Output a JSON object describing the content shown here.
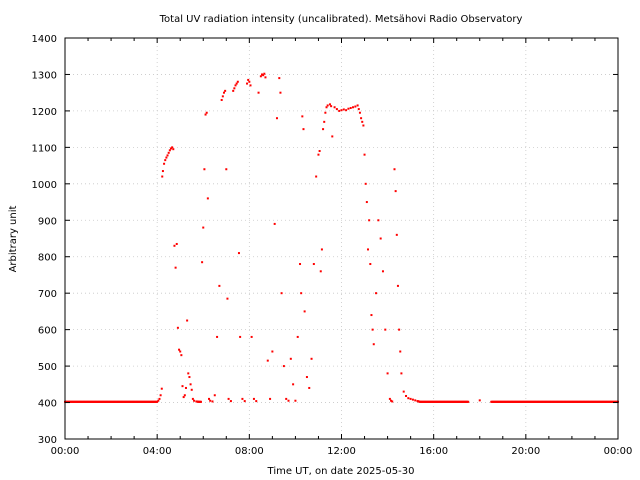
{
  "chart_data": {
    "type": "scatter",
    "title": "Total UV radiation intensity (uncalibrated). Metsähovi Radio Observatory",
    "xlabel": "Time UT, on date 2025-05-30",
    "ylabel": "Arbitrary unit",
    "xlim": [
      0,
      24
    ],
    "ylim": [
      300,
      1400
    ],
    "x_ticks": [
      0,
      4,
      8,
      12,
      16,
      20,
      24
    ],
    "x_tick_labels": [
      "00:00",
      "04:00",
      "08:00",
      "12:00",
      "16:00",
      "20:00",
      "00:00"
    ],
    "y_ticks": [
      300,
      400,
      500,
      600,
      700,
      800,
      900,
      1000,
      1100,
      1200,
      1300,
      1400
    ],
    "y_tick_labels": [
      "300",
      "400",
      "500",
      "600",
      "700",
      "800",
      "900",
      "1000",
      "1100",
      "1200",
      "1300",
      "1400"
    ],
    "grid": true,
    "marker_color": "#ff0000",
    "series": [
      {
        "points": [
          [
            0.0,
            402
          ],
          [
            0.5,
            402
          ],
          [
            1.0,
            402
          ],
          [
            1.5,
            402
          ],
          [
            2.0,
            402
          ],
          [
            2.5,
            402
          ],
          [
            3.0,
            402
          ],
          [
            3.5,
            402
          ],
          [
            4.0,
            402
          ],
          [
            4.05,
            405
          ],
          [
            4.1,
            410
          ],
          [
            4.15,
            420
          ],
          [
            4.2,
            438
          ],
          [
            4.22,
            1020
          ],
          [
            4.25,
            1035
          ],
          [
            4.3,
            1055
          ],
          [
            4.35,
            1065
          ],
          [
            4.4,
            1072
          ],
          [
            4.45,
            1078
          ],
          [
            4.5,
            1085
          ],
          [
            4.55,
            1092
          ],
          [
            4.6,
            1097
          ],
          [
            4.65,
            1100
          ],
          [
            4.7,
            1095
          ],
          [
            4.75,
            830
          ],
          [
            4.8,
            770
          ],
          [
            4.85,
            835
          ],
          [
            4.9,
            605
          ],
          [
            4.95,
            545
          ],
          [
            5.0,
            540
          ],
          [
            5.05,
            530
          ],
          [
            5.1,
            445
          ],
          [
            5.15,
            415
          ],
          [
            5.2,
            420
          ],
          [
            5.25,
            440
          ],
          [
            5.3,
            625
          ],
          [
            5.35,
            480
          ],
          [
            5.4,
            470
          ],
          [
            5.45,
            450
          ],
          [
            5.5,
            435
          ],
          [
            5.55,
            410
          ],
          [
            5.6,
            405
          ],
          [
            5.7,
            403
          ],
          [
            5.8,
            402
          ],
          [
            5.9,
            402
          ],
          [
            5.95,
            785
          ],
          [
            6.0,
            880
          ],
          [
            6.05,
            1040
          ],
          [
            6.1,
            1190
          ],
          [
            6.15,
            1195
          ],
          [
            6.2,
            960
          ],
          [
            6.25,
            410
          ],
          [
            6.3,
            405
          ],
          [
            6.4,
            403
          ],
          [
            6.5,
            420
          ],
          [
            6.6,
            580
          ],
          [
            6.7,
            720
          ],
          [
            6.8,
            1230
          ],
          [
            6.85,
            1240
          ],
          [
            6.9,
            1250
          ],
          [
            6.95,
            1255
          ],
          [
            7.0,
            1040
          ],
          [
            7.05,
            685
          ],
          [
            7.1,
            410
          ],
          [
            7.2,
            404
          ],
          [
            7.3,
            1255
          ],
          [
            7.35,
            1262
          ],
          [
            7.4,
            1270
          ],
          [
            7.45,
            1275
          ],
          [
            7.5,
            1280
          ],
          [
            7.55,
            810
          ],
          [
            7.6,
            580
          ],
          [
            7.7,
            410
          ],
          [
            7.8,
            404
          ],
          [
            7.9,
            1275
          ],
          [
            7.95,
            1285
          ],
          [
            8.0,
            1280
          ],
          [
            8.05,
            1270
          ],
          [
            8.1,
            580
          ],
          [
            8.2,
            410
          ],
          [
            8.3,
            404
          ],
          [
            8.4,
            1250
          ],
          [
            8.5,
            1295
          ],
          [
            8.55,
            1300
          ],
          [
            8.6,
            1298
          ],
          [
            8.65,
            1302
          ],
          [
            8.7,
            1292
          ],
          [
            8.8,
            515
          ],
          [
            8.9,
            410
          ],
          [
            9.0,
            540
          ],
          [
            9.1,
            890
          ],
          [
            9.2,
            1180
          ],
          [
            9.3,
            1290
          ],
          [
            9.35,
            1250
          ],
          [
            9.4,
            700
          ],
          [
            9.5,
            500
          ],
          [
            9.6,
            410
          ],
          [
            9.7,
            405
          ],
          [
            9.8,
            520
          ],
          [
            9.9,
            450
          ],
          [
            10.0,
            405
          ],
          [
            10.1,
            580
          ],
          [
            10.2,
            780
          ],
          [
            10.25,
            700
          ],
          [
            10.3,
            1185
          ],
          [
            10.35,
            1150
          ],
          [
            10.4,
            650
          ],
          [
            10.5,
            470
          ],
          [
            10.6,
            440
          ],
          [
            10.7,
            520
          ],
          [
            10.8,
            780
          ],
          [
            10.9,
            1020
          ],
          [
            11.0,
            1080
          ],
          [
            11.05,
            1090
          ],
          [
            11.1,
            760
          ],
          [
            11.15,
            820
          ],
          [
            11.2,
            1150
          ],
          [
            11.25,
            1170
          ],
          [
            11.3,
            1195
          ],
          [
            11.35,
            1210
          ],
          [
            11.4,
            1215
          ],
          [
            11.5,
            1218
          ],
          [
            11.55,
            1213
          ],
          [
            11.6,
            1130
          ],
          [
            11.7,
            1210
          ],
          [
            11.8,
            1205
          ],
          [
            11.9,
            1200
          ],
          [
            12.0,
            1202
          ],
          [
            12.1,
            1204
          ],
          [
            12.2,
            1202
          ],
          [
            12.3,
            1206
          ],
          [
            12.4,
            1208
          ],
          [
            12.5,
            1210
          ],
          [
            12.6,
            1212
          ],
          [
            12.7,
            1215
          ],
          [
            12.75,
            1205
          ],
          [
            12.8,
            1195
          ],
          [
            12.85,
            1180
          ],
          [
            12.9,
            1170
          ],
          [
            12.95,
            1160
          ],
          [
            13.0,
            1080
          ],
          [
            13.05,
            1000
          ],
          [
            13.1,
            950
          ],
          [
            13.15,
            820
          ],
          [
            13.2,
            900
          ],
          [
            13.25,
            780
          ],
          [
            13.3,
            640
          ],
          [
            13.35,
            600
          ],
          [
            13.4,
            560
          ],
          [
            13.5,
            700
          ],
          [
            13.6,
            900
          ],
          [
            13.7,
            850
          ],
          [
            13.8,
            760
          ],
          [
            13.9,
            600
          ],
          [
            14.0,
            480
          ],
          [
            14.1,
            410
          ],
          [
            14.15,
            405
          ],
          [
            14.2,
            403
          ],
          [
            14.3,
            1040
          ],
          [
            14.35,
            980
          ],
          [
            14.4,
            860
          ],
          [
            14.45,
            720
          ],
          [
            14.5,
            600
          ],
          [
            14.55,
            540
          ],
          [
            14.6,
            480
          ],
          [
            14.7,
            430
          ],
          [
            14.8,
            418
          ],
          [
            14.9,
            412
          ],
          [
            15.0,
            410
          ],
          [
            15.1,
            408
          ],
          [
            15.2,
            406
          ],
          [
            15.3,
            404
          ],
          [
            15.4,
            402
          ],
          [
            15.5,
            402
          ],
          [
            16.0,
            402
          ],
          [
            16.5,
            402
          ],
          [
            17.0,
            402
          ],
          [
            17.5,
            402
          ],
          [
            18.0,
            406
          ],
          [
            18.5,
            402
          ],
          [
            19.0,
            402
          ],
          [
            19.5,
            402
          ],
          [
            20.0,
            402
          ],
          [
            20.5,
            402
          ],
          [
            21.0,
            402
          ],
          [
            21.5,
            402
          ],
          [
            22.0,
            402
          ],
          [
            22.5,
            402
          ],
          [
            23.0,
            402
          ],
          [
            23.5,
            402
          ],
          [
            24.0,
            402
          ]
        ]
      }
    ]
  }
}
